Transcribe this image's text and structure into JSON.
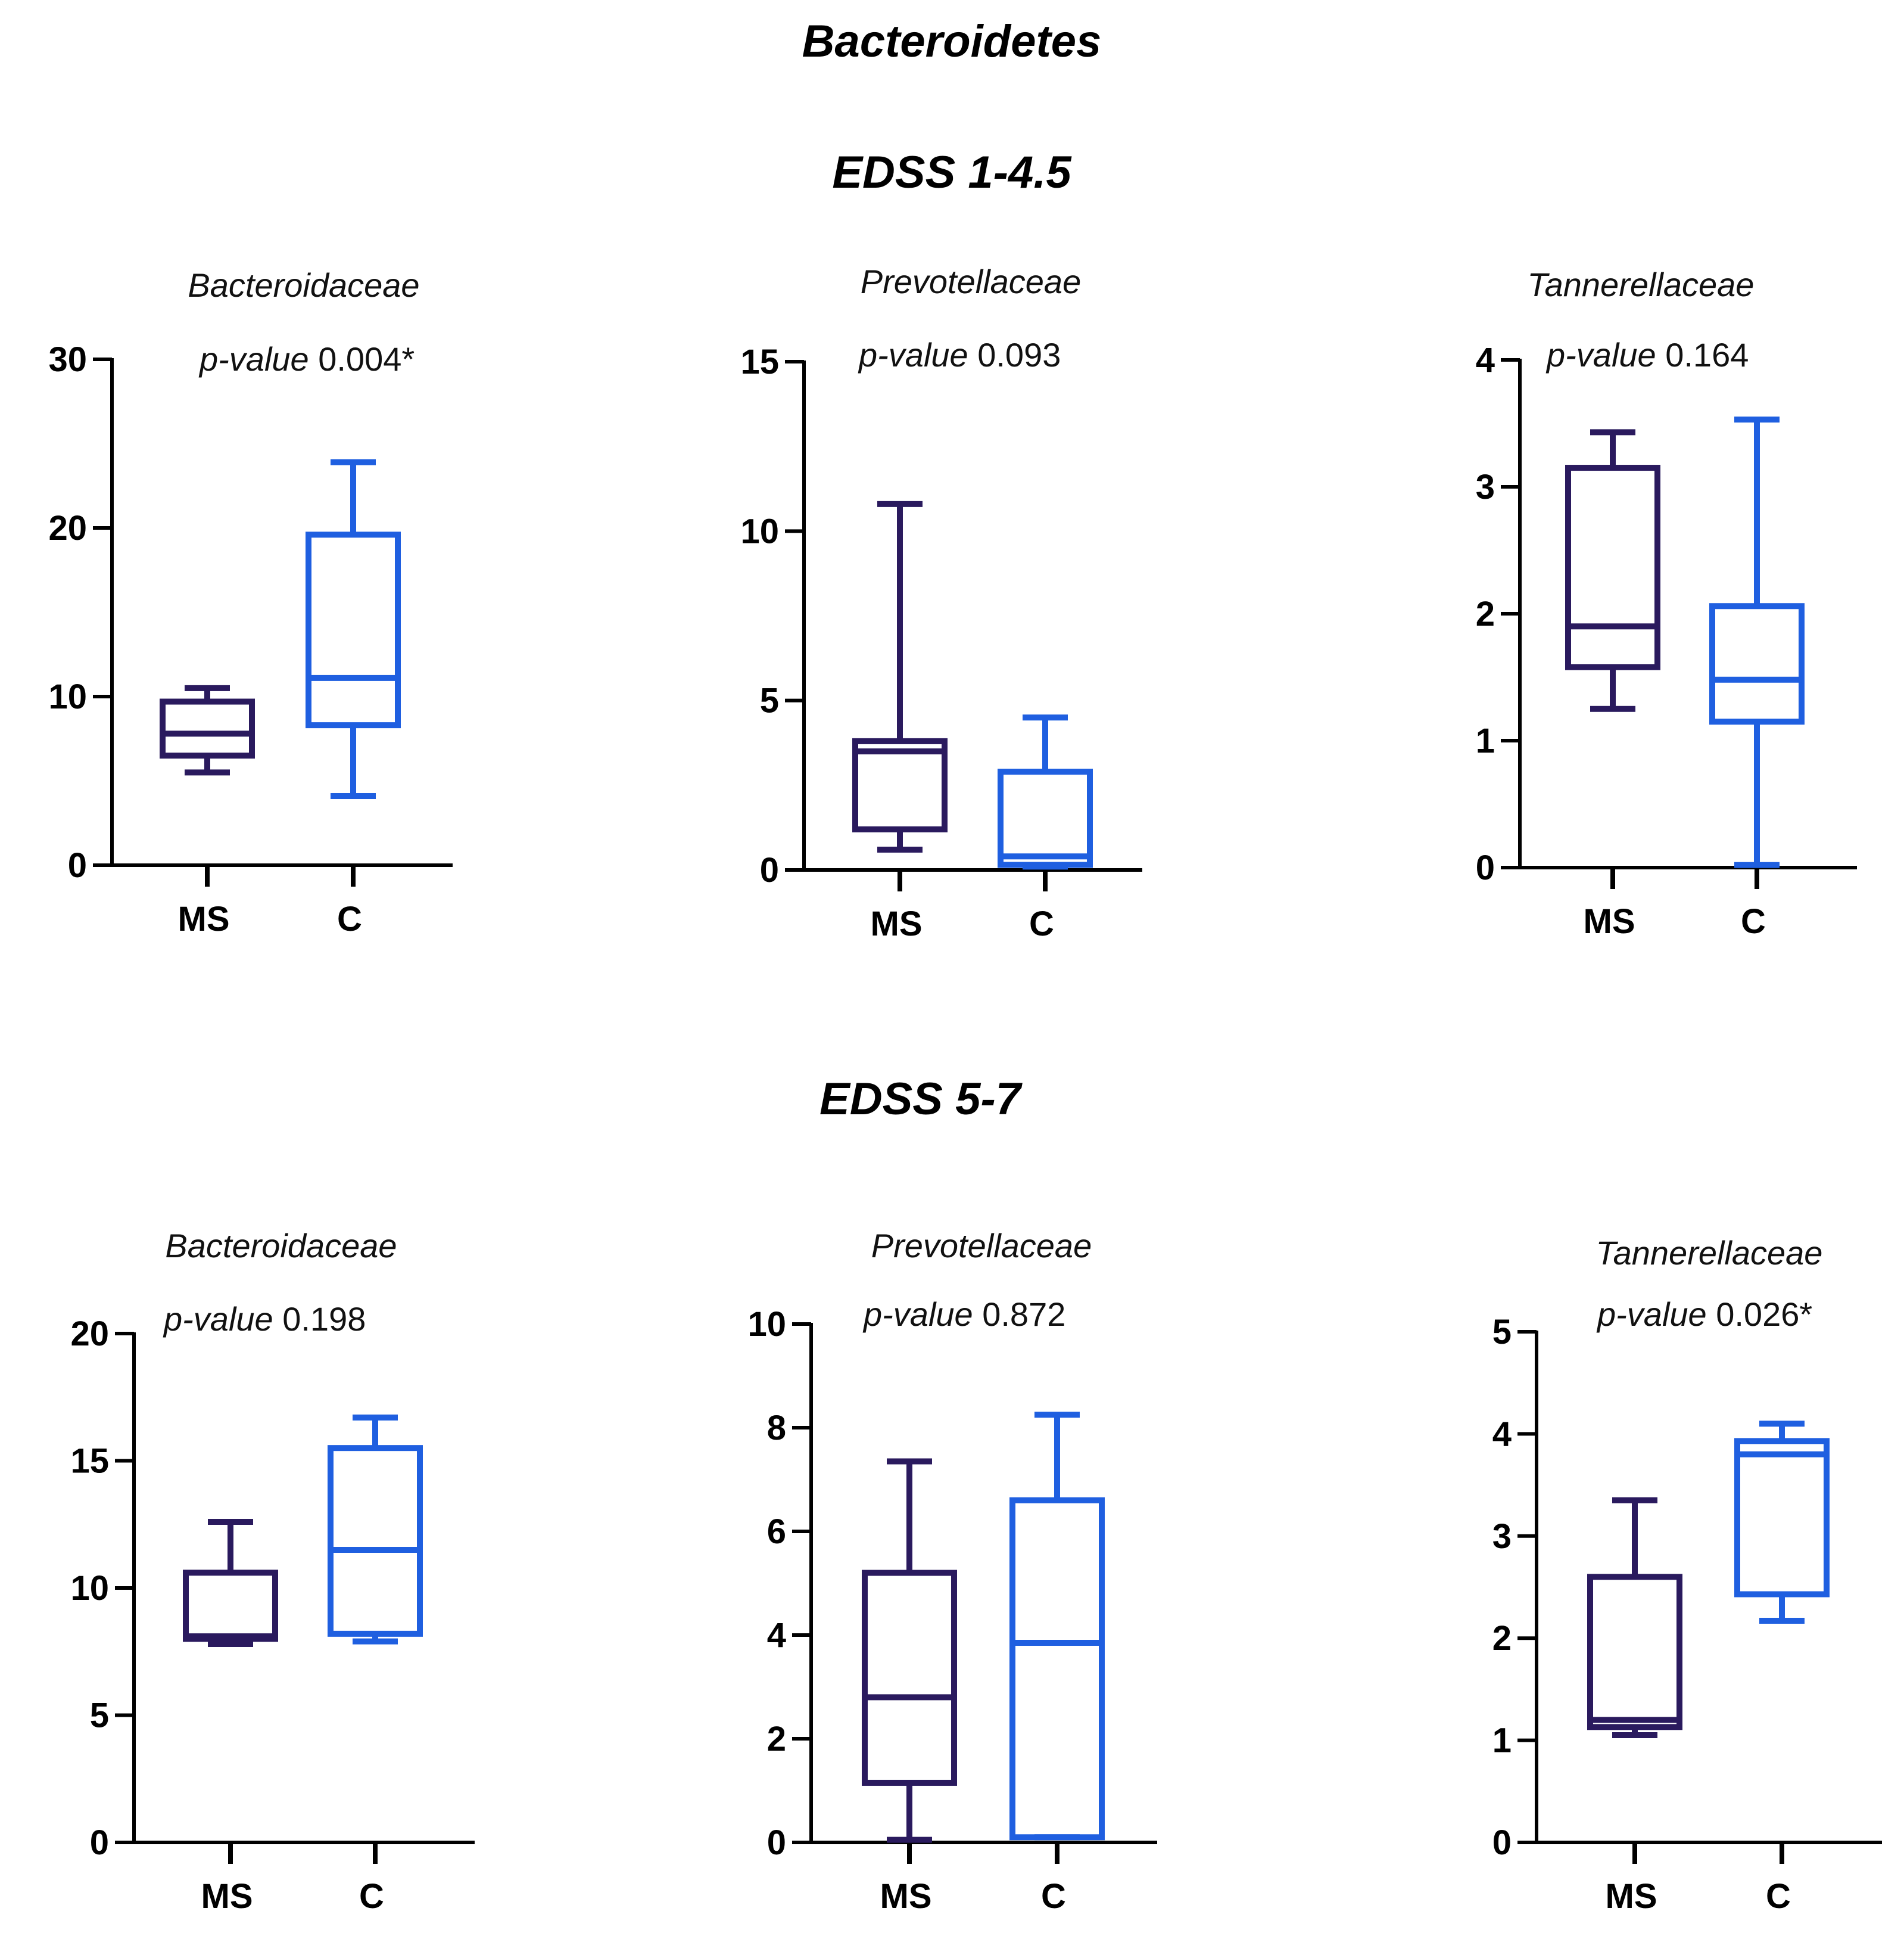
{
  "figure": {
    "title": "Bacteroidetes",
    "sections": [
      {
        "title": "EDSS 1-4.5"
      },
      {
        "title": "EDSS 5-7"
      }
    ]
  },
  "colors": {
    "MS": "#2a1a5e",
    "C": "#1f5fe0",
    "axis": "#000000"
  },
  "pvalue_prefix": "p-value",
  "chart_data": [
    {
      "type": "box",
      "section": "EDSS 1-4.5",
      "title": "Bacteroidaceae",
      "pvalue": "0.004*",
      "categories": [
        "MS",
        "C"
      ],
      "ylim": [
        0,
        30
      ],
      "yticks": [
        0,
        10,
        20,
        30
      ],
      "series": [
        {
          "name": "MS",
          "min": 5.5,
          "q1": 6.5,
          "median": 7.8,
          "q3": 9.7,
          "max": 10.5
        },
        {
          "name": "C",
          "min": 4.1,
          "q1": 8.3,
          "median": 11.1,
          "q3": 19.6,
          "max": 23.9
        }
      ]
    },
    {
      "type": "box",
      "section": "EDSS 1-4.5",
      "title": "Prevotellaceae",
      "pvalue": "0.093",
      "categories": [
        "MS",
        "C"
      ],
      "ylim": [
        0,
        15
      ],
      "yticks": [
        0,
        5,
        10,
        15
      ],
      "series": [
        {
          "name": "MS",
          "min": 0.6,
          "q1": 1.2,
          "median": 3.5,
          "q3": 3.8,
          "max": 10.8
        },
        {
          "name": "C",
          "min": 0.1,
          "q1": 0.15,
          "median": 0.4,
          "q3": 2.9,
          "max": 4.5
        }
      ]
    },
    {
      "type": "box",
      "section": "EDSS 1-4.5",
      "title": "Tannerellaceae",
      "pvalue": "0.164",
      "categories": [
        "MS",
        "C"
      ],
      "ylim": [
        0,
        4
      ],
      "yticks": [
        0,
        1,
        2,
        3,
        4
      ],
      "series": [
        {
          "name": "MS",
          "min": 1.25,
          "q1": 1.58,
          "median": 1.9,
          "q3": 3.15,
          "max": 3.43
        },
        {
          "name": "C",
          "min": 0.02,
          "q1": 1.15,
          "median": 1.48,
          "q3": 2.06,
          "max": 3.53
        }
      ]
    },
    {
      "type": "box",
      "section": "EDSS 5-7",
      "title": "Bacteroidaceae",
      "pvalue": "0.198",
      "categories": [
        "MS",
        "C"
      ],
      "ylim": [
        0,
        20
      ],
      "yticks": [
        0,
        5,
        10,
        15,
        20
      ],
      "series": [
        {
          "name": "MS",
          "min": 7.8,
          "q1": 8.0,
          "median": 8.1,
          "q3": 10.6,
          "max": 12.6
        },
        {
          "name": "C",
          "min": 7.9,
          "q1": 8.2,
          "median": 11.5,
          "q3": 15.5,
          "max": 16.7
        }
      ]
    },
    {
      "type": "box",
      "section": "EDSS 5-7",
      "title": "Prevotellaceae",
      "pvalue": "0.872",
      "categories": [
        "MS",
        "C"
      ],
      "ylim": [
        0,
        10
      ],
      "yticks": [
        0,
        2,
        4,
        6,
        8,
        10
      ],
      "series": [
        {
          "name": "MS",
          "min": 0.05,
          "q1": 1.15,
          "median": 2.8,
          "q3": 5.2,
          "max": 7.35
        },
        {
          "name": "C",
          "min": 0.1,
          "q1": 0.1,
          "median": 3.85,
          "q3": 6.6,
          "max": 8.25
        }
      ]
    },
    {
      "type": "box",
      "section": "EDSS 5-7",
      "title": "Tannerellaceae",
      "pvalue": "0.026*",
      "categories": [
        "MS",
        "C"
      ],
      "ylim": [
        0,
        5
      ],
      "yticks": [
        0,
        1,
        2,
        3,
        4,
        5
      ],
      "series": [
        {
          "name": "MS",
          "min": 1.05,
          "q1": 1.13,
          "median": 1.2,
          "q3": 2.6,
          "max": 3.35
        },
        {
          "name": "C",
          "min": 2.17,
          "q1": 2.43,
          "median": 3.8,
          "q3": 3.93,
          "max": 4.1
        }
      ]
    }
  ]
}
